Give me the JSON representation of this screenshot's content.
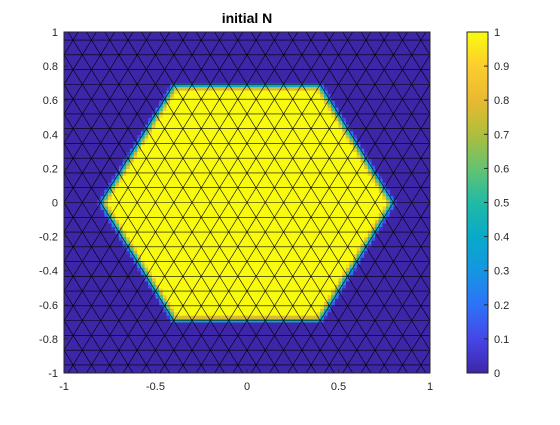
{
  "chart_data": {
    "type": "heatmap",
    "title": "initial N",
    "xlabel": "",
    "ylabel": "",
    "xlim": [
      -1,
      1
    ],
    "ylim": [
      -1,
      1
    ],
    "x_ticks": [
      "-1",
      "-0.5",
      "0",
      "0.5",
      "1"
    ],
    "y_ticks": [
      "1",
      "0.8",
      "0.6",
      "0.4",
      "0.2",
      "0",
      "-0.2",
      "-0.4",
      "-0.6",
      "-0.8",
      "-1"
    ],
    "colorbar": {
      "range": [
        0,
        1
      ],
      "ticks": [
        "1",
        "0.9",
        "0.8",
        "0.7",
        "0.6",
        "0.5",
        "0.4",
        "0.3",
        "0.2",
        "0.1",
        "0"
      ],
      "colormap": "parula"
    },
    "field": {
      "description_shape": "hexagonal-patch",
      "center": [
        0,
        0
      ],
      "inside_value": 1,
      "outside_value": 0,
      "radius_inner": 0.76,
      "radius_outer": 0.82
    },
    "mesh": {
      "type": "triangular",
      "spacing": 0.1,
      "edge_color": "#000000"
    },
    "colors": {
      "low": "#3e26a8",
      "high": "#f9fb0e"
    }
  }
}
